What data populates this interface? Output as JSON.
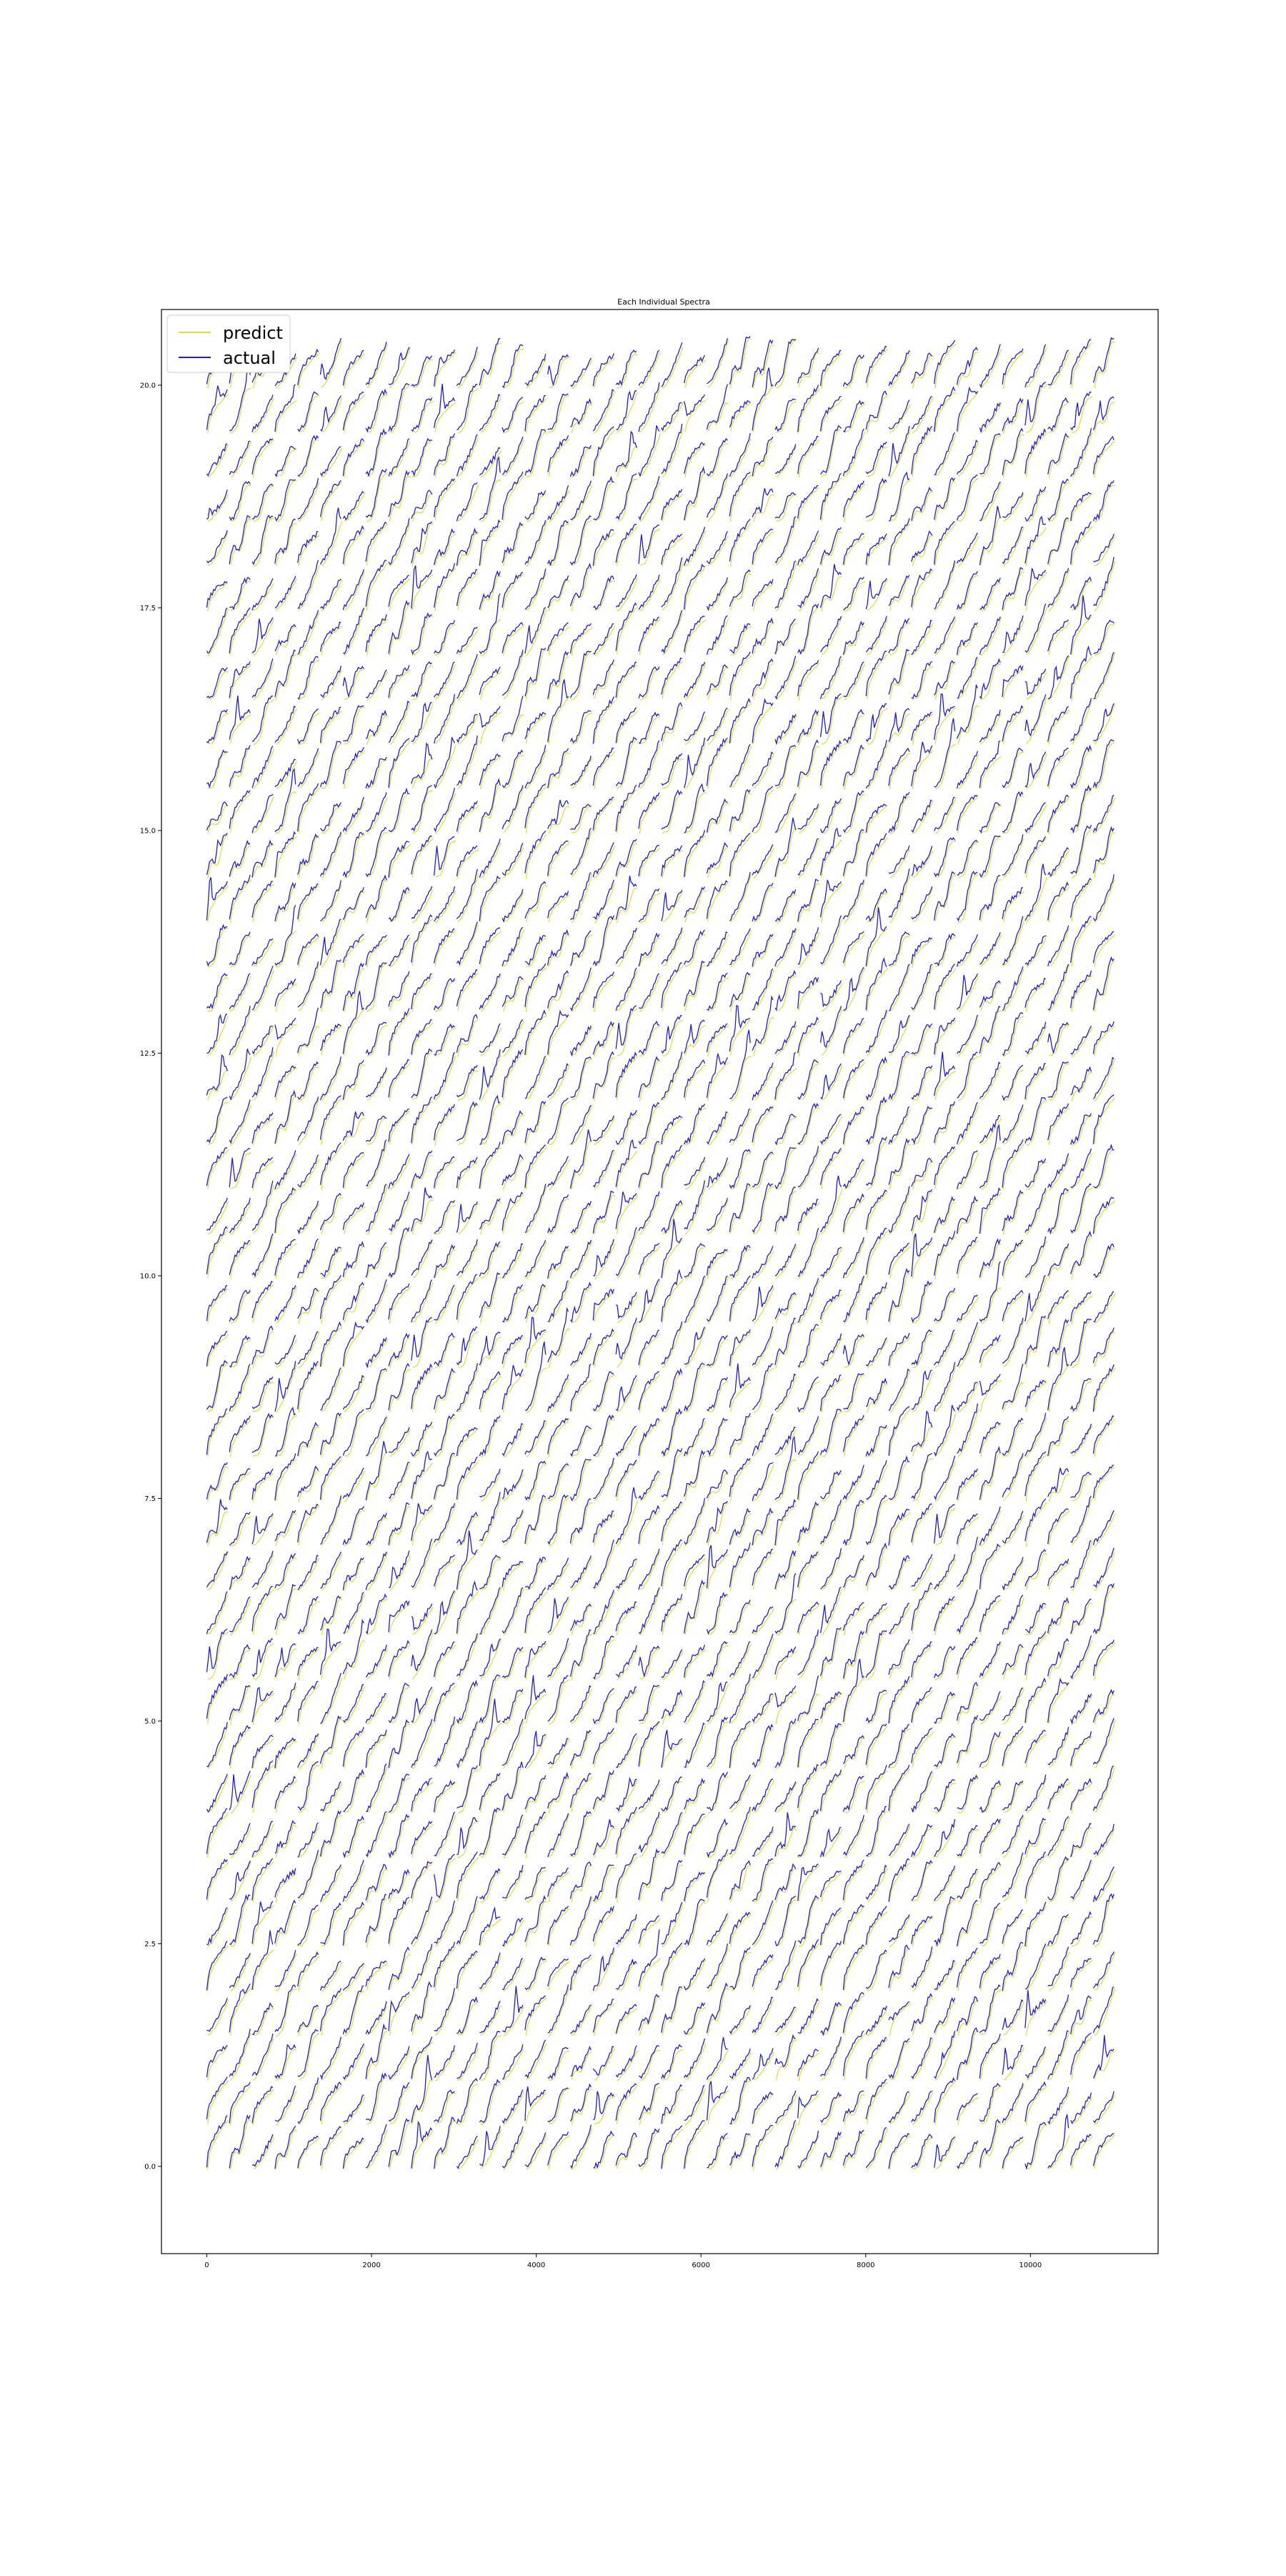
{
  "chart_data": {
    "type": "line",
    "title": "Each Individual Spectra",
    "xlabel": "",
    "ylabel": "",
    "xlim": [
      -550,
      11550
    ],
    "ylim": [
      -0.98,
      20.85
    ],
    "x_ticks": [
      0,
      2000,
      4000,
      6000,
      8000,
      10000
    ],
    "x_tick_labels": [
      "0",
      "2000",
      "4000",
      "6000",
      "8000",
      "10000"
    ],
    "y_ticks": [
      0.0,
      2.5,
      5.0,
      7.5,
      10.0,
      12.5,
      15.0,
      17.5,
      20.0
    ],
    "y_tick_labels": [
      "0.0",
      "2.5",
      "5.0",
      "7.5",
      "10.0",
      "12.5",
      "15.0",
      "17.5",
      "20.0"
    ],
    "grid": false,
    "legend": {
      "position": "top-left",
      "entries": [
        "predict",
        "actual"
      ]
    },
    "series": [
      {
        "name": "predict",
        "color": "#dcdc3c"
      },
      {
        "name": "actual",
        "color": "#2020c0"
      }
    ],
    "layout_description": "41 rows x 40 columns of small individual spectra, each about 250 x-units wide and rising roughly 0.4 y-units, rows spaced 0.5 y-units apart from 0.0 to 20.0",
    "grid_rows": 41,
    "grid_cols": 40,
    "row_spacing": 0.5,
    "col_spacing": 276,
    "spectrum_width": 250
  }
}
